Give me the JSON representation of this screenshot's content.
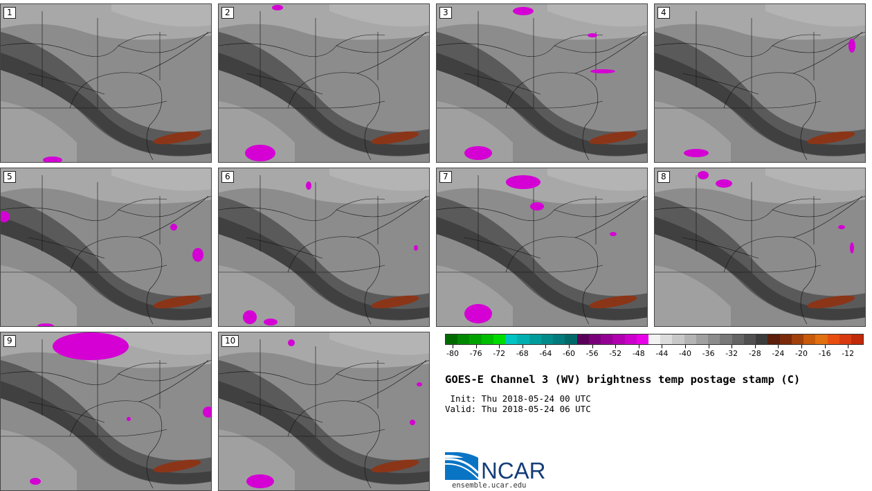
{
  "panels": [
    {
      "label": "1"
    },
    {
      "label": "2"
    },
    {
      "label": "3"
    },
    {
      "label": "4"
    },
    {
      "label": "5"
    },
    {
      "label": "6"
    },
    {
      "label": "7"
    },
    {
      "label": "8"
    },
    {
      "label": "9"
    },
    {
      "label": "10"
    }
  ],
  "colorbar": {
    "colors": [
      "#006a00",
      "#008800",
      "#00a200",
      "#00bd00",
      "#00dc00",
      "#00c4c4",
      "#00b0b0",
      "#009c9c",
      "#008a8a",
      "#007a7a",
      "#006868",
      "#5a005a",
      "#780078",
      "#940094",
      "#b000b0",
      "#cc00cc",
      "#e800e8",
      "#f2f2f2",
      "#dcdcdc",
      "#c8c8c8",
      "#b4b4b4",
      "#a0a0a0",
      "#8c8c8c",
      "#787878",
      "#646464",
      "#505050",
      "#3c3c3c",
      "#5a1e0a",
      "#7a2a0a",
      "#a0400a",
      "#c85a0a",
      "#e07010",
      "#e84e10",
      "#d83a10",
      "#c02a08"
    ],
    "tick_labels": [
      "-80",
      "-76",
      "-72",
      "-68",
      "-64",
      "-60",
      "-56",
      "-52",
      "-48",
      "-44",
      "-40",
      "-36",
      "-32",
      "-28",
      "-24",
      "-20",
      "-16",
      "-12"
    ]
  },
  "title": "GOES-E Channel 3 (WV) brightness temp postage stamp (C)",
  "init": " Init: Thu 2018-05-24 00 UTC",
  "valid": "Valid: Thu 2018-05-24 06 UTC",
  "logo_text": "NCAR",
  "logo_url": "ensemble.ucar.edu"
}
